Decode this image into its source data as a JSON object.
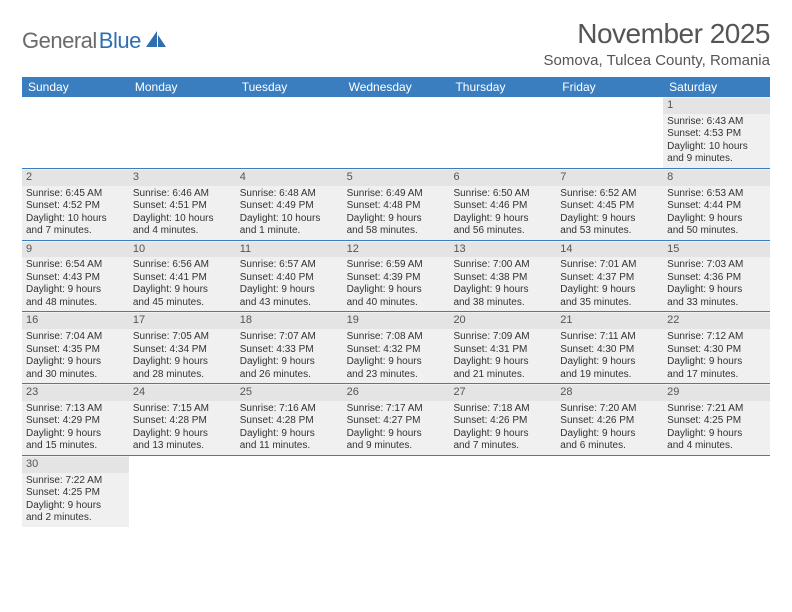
{
  "logo": {
    "word1": "General",
    "word2": "Blue",
    "word1_color": "#6a6a6a",
    "word2_color": "#2f6fb0",
    "sail_color": "#2f6fb0"
  },
  "title": "November 2025",
  "location": "Somova, Tulcea County, Romania",
  "header_bg": "#3b7ec0",
  "day_names": [
    "Sunday",
    "Monday",
    "Tuesday",
    "Wednesday",
    "Thursday",
    "Friday",
    "Saturday"
  ],
  "cell_bg": "#f0f0f0",
  "daynum_bg": "#e4e4e4",
  "border_color": "#3b7ec0",
  "text_color": "#333333",
  "weeks": [
    [
      null,
      null,
      null,
      null,
      null,
      null,
      {
        "n": "1",
        "sr": "Sunrise: 6:43 AM",
        "ss": "Sunset: 4:53 PM",
        "d1": "Daylight: 10 hours",
        "d2": "and 9 minutes."
      }
    ],
    [
      {
        "n": "2",
        "sr": "Sunrise: 6:45 AM",
        "ss": "Sunset: 4:52 PM",
        "d1": "Daylight: 10 hours",
        "d2": "and 7 minutes."
      },
      {
        "n": "3",
        "sr": "Sunrise: 6:46 AM",
        "ss": "Sunset: 4:51 PM",
        "d1": "Daylight: 10 hours",
        "d2": "and 4 minutes."
      },
      {
        "n": "4",
        "sr": "Sunrise: 6:48 AM",
        "ss": "Sunset: 4:49 PM",
        "d1": "Daylight: 10 hours",
        "d2": "and 1 minute."
      },
      {
        "n": "5",
        "sr": "Sunrise: 6:49 AM",
        "ss": "Sunset: 4:48 PM",
        "d1": "Daylight: 9 hours",
        "d2": "and 58 minutes."
      },
      {
        "n": "6",
        "sr": "Sunrise: 6:50 AM",
        "ss": "Sunset: 4:46 PM",
        "d1": "Daylight: 9 hours",
        "d2": "and 56 minutes."
      },
      {
        "n": "7",
        "sr": "Sunrise: 6:52 AM",
        "ss": "Sunset: 4:45 PM",
        "d1": "Daylight: 9 hours",
        "d2": "and 53 minutes."
      },
      {
        "n": "8",
        "sr": "Sunrise: 6:53 AM",
        "ss": "Sunset: 4:44 PM",
        "d1": "Daylight: 9 hours",
        "d2": "and 50 minutes."
      }
    ],
    [
      {
        "n": "9",
        "sr": "Sunrise: 6:54 AM",
        "ss": "Sunset: 4:43 PM",
        "d1": "Daylight: 9 hours",
        "d2": "and 48 minutes."
      },
      {
        "n": "10",
        "sr": "Sunrise: 6:56 AM",
        "ss": "Sunset: 4:41 PM",
        "d1": "Daylight: 9 hours",
        "d2": "and 45 minutes."
      },
      {
        "n": "11",
        "sr": "Sunrise: 6:57 AM",
        "ss": "Sunset: 4:40 PM",
        "d1": "Daylight: 9 hours",
        "d2": "and 43 minutes."
      },
      {
        "n": "12",
        "sr": "Sunrise: 6:59 AM",
        "ss": "Sunset: 4:39 PM",
        "d1": "Daylight: 9 hours",
        "d2": "and 40 minutes."
      },
      {
        "n": "13",
        "sr": "Sunrise: 7:00 AM",
        "ss": "Sunset: 4:38 PM",
        "d1": "Daylight: 9 hours",
        "d2": "and 38 minutes."
      },
      {
        "n": "14",
        "sr": "Sunrise: 7:01 AM",
        "ss": "Sunset: 4:37 PM",
        "d1": "Daylight: 9 hours",
        "d2": "and 35 minutes."
      },
      {
        "n": "15",
        "sr": "Sunrise: 7:03 AM",
        "ss": "Sunset: 4:36 PM",
        "d1": "Daylight: 9 hours",
        "d2": "and 33 minutes."
      }
    ],
    [
      {
        "n": "16",
        "sr": "Sunrise: 7:04 AM",
        "ss": "Sunset: 4:35 PM",
        "d1": "Daylight: 9 hours",
        "d2": "and 30 minutes."
      },
      {
        "n": "17",
        "sr": "Sunrise: 7:05 AM",
        "ss": "Sunset: 4:34 PM",
        "d1": "Daylight: 9 hours",
        "d2": "and 28 minutes."
      },
      {
        "n": "18",
        "sr": "Sunrise: 7:07 AM",
        "ss": "Sunset: 4:33 PM",
        "d1": "Daylight: 9 hours",
        "d2": "and 26 minutes."
      },
      {
        "n": "19",
        "sr": "Sunrise: 7:08 AM",
        "ss": "Sunset: 4:32 PM",
        "d1": "Daylight: 9 hours",
        "d2": "and 23 minutes."
      },
      {
        "n": "20",
        "sr": "Sunrise: 7:09 AM",
        "ss": "Sunset: 4:31 PM",
        "d1": "Daylight: 9 hours",
        "d2": "and 21 minutes."
      },
      {
        "n": "21",
        "sr": "Sunrise: 7:11 AM",
        "ss": "Sunset: 4:30 PM",
        "d1": "Daylight: 9 hours",
        "d2": "and 19 minutes."
      },
      {
        "n": "22",
        "sr": "Sunrise: 7:12 AM",
        "ss": "Sunset: 4:30 PM",
        "d1": "Daylight: 9 hours",
        "d2": "and 17 minutes."
      }
    ],
    [
      {
        "n": "23",
        "sr": "Sunrise: 7:13 AM",
        "ss": "Sunset: 4:29 PM",
        "d1": "Daylight: 9 hours",
        "d2": "and 15 minutes."
      },
      {
        "n": "24",
        "sr": "Sunrise: 7:15 AM",
        "ss": "Sunset: 4:28 PM",
        "d1": "Daylight: 9 hours",
        "d2": "and 13 minutes."
      },
      {
        "n": "25",
        "sr": "Sunrise: 7:16 AM",
        "ss": "Sunset: 4:28 PM",
        "d1": "Daylight: 9 hours",
        "d2": "and 11 minutes."
      },
      {
        "n": "26",
        "sr": "Sunrise: 7:17 AM",
        "ss": "Sunset: 4:27 PM",
        "d1": "Daylight: 9 hours",
        "d2": "and 9 minutes."
      },
      {
        "n": "27",
        "sr": "Sunrise: 7:18 AM",
        "ss": "Sunset: 4:26 PM",
        "d1": "Daylight: 9 hours",
        "d2": "and 7 minutes."
      },
      {
        "n": "28",
        "sr": "Sunrise: 7:20 AM",
        "ss": "Sunset: 4:26 PM",
        "d1": "Daylight: 9 hours",
        "d2": "and 6 minutes."
      },
      {
        "n": "29",
        "sr": "Sunrise: 7:21 AM",
        "ss": "Sunset: 4:25 PM",
        "d1": "Daylight: 9 hours",
        "d2": "and 4 minutes."
      }
    ],
    [
      {
        "n": "30",
        "sr": "Sunrise: 7:22 AM",
        "ss": "Sunset: 4:25 PM",
        "d1": "Daylight: 9 hours",
        "d2": "and 2 minutes."
      },
      null,
      null,
      null,
      null,
      null,
      null
    ]
  ]
}
